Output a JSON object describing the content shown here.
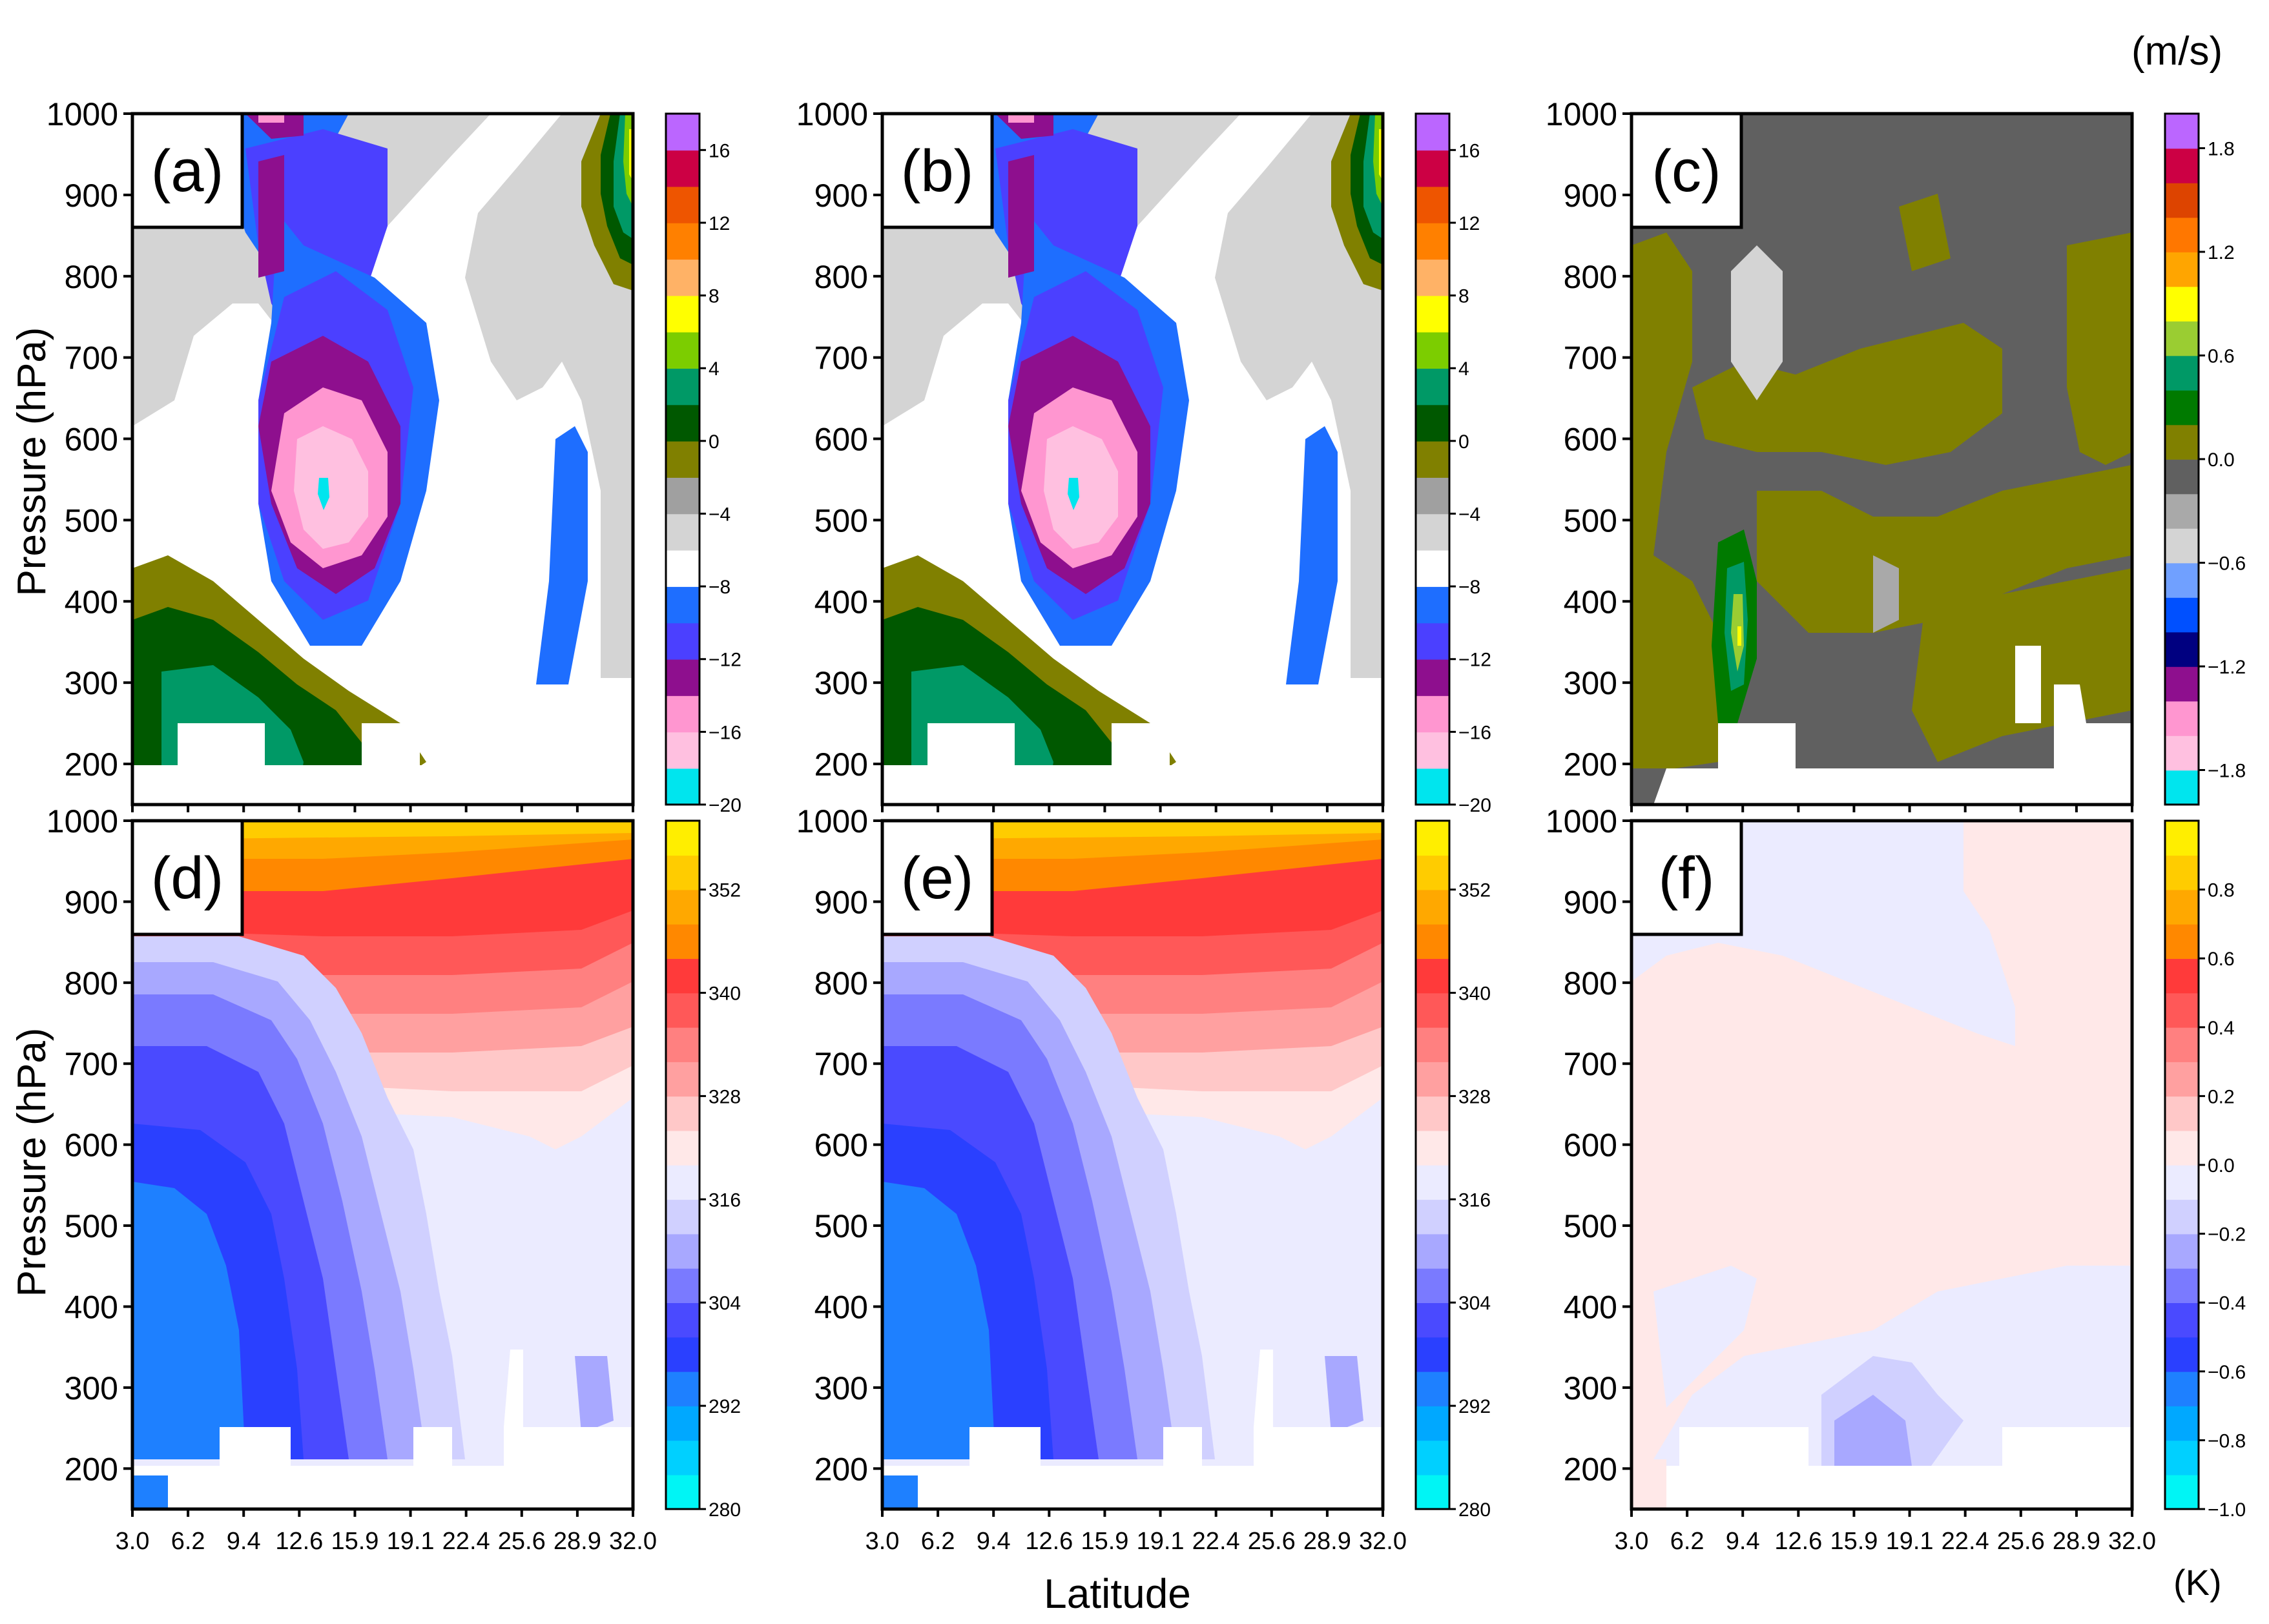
{
  "figure": {
    "unit_top": "(m/s)",
    "unit_bottom": "(K)",
    "xlabel": "Latitude",
    "ylabel": "Pressure (hPa)"
  },
  "chart_data": [
    {
      "type": "heatmap",
      "panel": "a",
      "title": "(a)",
      "x_ticks": [
        "3.0",
        "6.2",
        "9.4",
        "12.6",
        "15.9",
        "19.1",
        "22.4",
        "25.6",
        "28.9",
        "32.0"
      ],
      "y_ticks": [
        "200",
        "300",
        "400",
        "500",
        "600",
        "700",
        "800",
        "900",
        "1000"
      ],
      "xlim": [
        3.0,
        32.0
      ],
      "ylim": [
        1000,
        150
      ],
      "colorbar": {
        "range": [
          -20,
          18
        ],
        "ticks": [
          "16",
          "12",
          "8",
          "4",
          "0",
          "−4",
          "−8",
          "−12",
          "−16",
          "−20"
        ],
        "tick_values": [
          16,
          12,
          8,
          4,
          0,
          -4,
          -8,
          -12,
          -16,
          -20
        ],
        "colors": [
          "#00e5ee",
          "#ffc0e0",
          "#ff96d0",
          "#8e0f8e",
          "#4b40ff",
          "#1e6eff",
          "#ffffff",
          "#d4d4d4",
          "#a0a0a0",
          "#808000",
          "#005800",
          "#009966",
          "#7ccd00",
          "#ffff00",
          "#ffb266",
          "#ff8000",
          "#ee5500",
          "#cc0044",
          "#bb66ff"
        ]
      }
    },
    {
      "type": "heatmap",
      "panel": "b",
      "title": "(b)",
      "x_ticks": [
        "3.0",
        "6.2",
        "9.4",
        "12.6",
        "15.9",
        "19.1",
        "22.4",
        "25.6",
        "28.9",
        "32.0"
      ],
      "y_ticks": [
        "200",
        "300",
        "400",
        "500",
        "600",
        "700",
        "800",
        "900",
        "1000"
      ],
      "xlim": [
        3.0,
        32.0
      ],
      "ylim": [
        1000,
        150
      ],
      "colorbar": {
        "range": [
          -20,
          18
        ],
        "ticks": [
          "16",
          "12",
          "8",
          "4",
          "0",
          "−4",
          "−8",
          "−12",
          "−16",
          "−20"
        ],
        "tick_values": [
          16,
          12,
          8,
          4,
          0,
          -4,
          -8,
          -12,
          -16,
          -20
        ],
        "colors": [
          "#00e5ee",
          "#ffc0e0",
          "#ff96d0",
          "#8e0f8e",
          "#4b40ff",
          "#1e6eff",
          "#ffffff",
          "#d4d4d4",
          "#a0a0a0",
          "#808000",
          "#005800",
          "#009966",
          "#7ccd00",
          "#ffff00",
          "#ffb266",
          "#ff8000",
          "#ee5500",
          "#cc0044",
          "#bb66ff"
        ]
      }
    },
    {
      "type": "heatmap",
      "panel": "c",
      "title": "(c)",
      "x_ticks": [
        "3.0",
        "6.2",
        "9.4",
        "12.6",
        "15.9",
        "19.1",
        "22.4",
        "25.6",
        "28.9",
        "32.0"
      ],
      "y_ticks": [
        "200",
        "300",
        "400",
        "500",
        "600",
        "700",
        "800",
        "900",
        "1000"
      ],
      "xlim": [
        3.0,
        32.0
      ],
      "ylim": [
        1000,
        150
      ],
      "colorbar": {
        "range": [
          -2.0,
          2.0
        ],
        "ticks": [
          "1.8",
          "1.2",
          "0.6",
          "0.0",
          "−0.6",
          "−1.2",
          "−1.8"
        ],
        "tick_values": [
          1.8,
          1.2,
          0.6,
          0.0,
          -0.6,
          -1.2,
          -1.8
        ],
        "colors": [
          "#00e5ee",
          "#ffc0e0",
          "#ff96d0",
          "#8e0f8e",
          "#000080",
          "#0050ff",
          "#70a0ff",
          "#d4d4d4",
          "#a9a9a9",
          "#606060",
          "#808000",
          "#007a00",
          "#009966",
          "#9acd32",
          "#ffff00",
          "#ffa500",
          "#ff7700",
          "#dd4400",
          "#cc0044",
          "#bb66ff"
        ]
      }
    },
    {
      "type": "heatmap",
      "panel": "d",
      "title": "(d)",
      "x_ticks": [
        "3.0",
        "6.2",
        "9.4",
        "12.6",
        "15.9",
        "19.1",
        "22.4",
        "25.6",
        "28.9",
        "32.0"
      ],
      "y_ticks": [
        "200",
        "300",
        "400",
        "500",
        "600",
        "700",
        "800",
        "900",
        "1000"
      ],
      "xlim": [
        3.0,
        32.0
      ],
      "ylim": [
        1000,
        150
      ],
      "colorbar": {
        "range": [
          280,
          360
        ],
        "ticks": [
          "352",
          "340",
          "328",
          "316",
          "304",
          "292",
          "280"
        ],
        "tick_values": [
          352,
          340,
          328,
          316,
          304,
          292,
          280
        ],
        "colors": [
          "#00f5f5",
          "#00d0ff",
          "#00a8ff",
          "#1e80ff",
          "#2a40ff",
          "#4a4aff",
          "#7a7aff",
          "#a8a8ff",
          "#d0d0ff",
          "#ebebff",
          "#ffe8e8",
          "#ffc8c8",
          "#ffa0a0",
          "#ff8080",
          "#ff5858",
          "#ff3a3a",
          "#ff8800",
          "#ffa800",
          "#ffcc00",
          "#ffee00"
        ]
      }
    },
    {
      "type": "heatmap",
      "panel": "e",
      "title": "(e)",
      "x_ticks": [
        "3.0",
        "6.2",
        "9.4",
        "12.6",
        "15.9",
        "19.1",
        "22.4",
        "25.6",
        "28.9",
        "32.0"
      ],
      "y_ticks": [
        "200",
        "300",
        "400",
        "500",
        "600",
        "700",
        "800",
        "900",
        "1000"
      ],
      "xlim": [
        3.0,
        32.0
      ],
      "ylim": [
        1000,
        150
      ],
      "colorbar": {
        "range": [
          280,
          360
        ],
        "ticks": [
          "352",
          "340",
          "328",
          "316",
          "304",
          "292",
          "280"
        ],
        "tick_values": [
          352,
          340,
          328,
          316,
          304,
          292,
          280
        ],
        "colors": [
          "#00f5f5",
          "#00d0ff",
          "#00a8ff",
          "#1e80ff",
          "#2a40ff",
          "#4a4aff",
          "#7a7aff",
          "#a8a8ff",
          "#d0d0ff",
          "#ebebff",
          "#ffe8e8",
          "#ffc8c8",
          "#ffa0a0",
          "#ff8080",
          "#ff5858",
          "#ff3a3a",
          "#ff8800",
          "#ffa800",
          "#ffcc00",
          "#ffee00"
        ]
      }
    },
    {
      "type": "heatmap",
      "panel": "f",
      "title": "(f)",
      "x_ticks": [
        "3.0",
        "6.2",
        "9.4",
        "12.6",
        "15.9",
        "19.1",
        "22.4",
        "25.6",
        "28.9",
        "32.0"
      ],
      "y_ticks": [
        "200",
        "300",
        "400",
        "500",
        "600",
        "700",
        "800",
        "900",
        "1000"
      ],
      "xlim": [
        3.0,
        32.0
      ],
      "ylim": [
        1000,
        150
      ],
      "colorbar": {
        "range": [
          -1.0,
          1.0
        ],
        "ticks": [
          "0.8",
          "0.6",
          "0.4",
          "0.2",
          "0.0",
          "−0.2",
          "−0.4",
          "−0.6",
          "−0.8",
          "−1.0"
        ],
        "tick_values": [
          0.8,
          0.6,
          0.4,
          0.2,
          0.0,
          -0.2,
          -0.4,
          -0.6,
          -0.8,
          -1.0
        ],
        "colors": [
          "#00f5f5",
          "#00d0ff",
          "#00a8ff",
          "#1e80ff",
          "#2a40ff",
          "#4a4aff",
          "#7a7aff",
          "#a8a8ff",
          "#d0d0ff",
          "#ebebff",
          "#ffe8e8",
          "#ffc8c8",
          "#ffa0a0",
          "#ff8080",
          "#ff5858",
          "#ff3a3a",
          "#ff8800",
          "#ffa800",
          "#ffcc00",
          "#ffee00"
        ]
      }
    }
  ]
}
